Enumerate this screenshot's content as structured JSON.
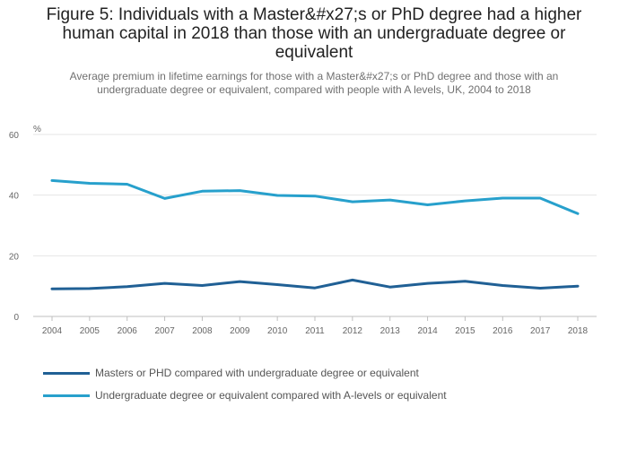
{
  "chart_data": {
    "type": "line",
    "title": "Figure 5: Individuals with a Master&#x27;s or PhD degree had a higher human capital in 2018 than those with an undergraduate degree or equivalent",
    "subtitle": "Average premium in lifetime earnings for those with a Master&#x27;s or PhD degree and those with an undergraduate degree or equivalent, compared with people with A levels, UK, 2004 to 2018",
    "ylabel": "%",
    "xlabel": "",
    "ylim": [
      0,
      60
    ],
    "yticks": [
      "0",
      "20",
      "40",
      "60"
    ],
    "grid": true,
    "legend_position": "bottom-left",
    "categories": [
      "2004",
      "2005",
      "2006",
      "2007",
      "2008",
      "2009",
      "2010",
      "2011",
      "2012",
      "2013",
      "2014",
      "2015",
      "2016",
      "2017",
      "2018"
    ],
    "series": [
      {
        "name": "Masters or PHD compared with undergraduate degree or equivalent",
        "color": "#206095",
        "values": [
          9.1,
          9.2,
          9.8,
          10.9,
          10.2,
          11.5,
          10.5,
          9.4,
          12.0,
          9.7,
          10.9,
          11.6,
          10.2,
          9.3,
          10.0
        ]
      },
      {
        "name": "Undergraduate degree or equivalent compared with A-levels or equivalent",
        "color": "#27a0cc",
        "values": [
          44.8,
          43.9,
          43.6,
          38.9,
          41.3,
          41.5,
          39.9,
          39.7,
          37.8,
          38.4,
          36.8,
          38.1,
          39.0,
          39.0,
          33.9
        ]
      }
    ]
  }
}
